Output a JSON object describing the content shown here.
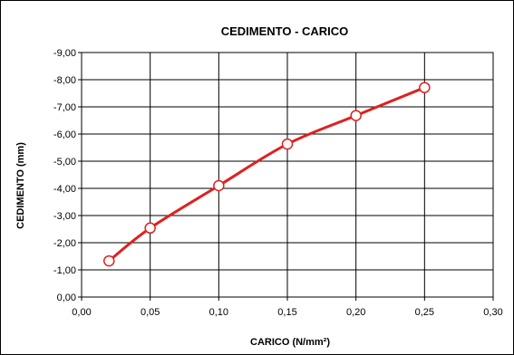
{
  "chart_data": {
    "type": "line",
    "title": "CEDIMENTO - CARICO",
    "xlabel": "CARICO  (N/mm²)",
    "ylabel": "CEDIMENTO (mm)",
    "xlim": [
      0,
      0.3
    ],
    "ylim": [
      0,
      -9
    ],
    "xticks": [
      "0,00",
      "0,05",
      "0,10",
      "0,15",
      "0,20",
      "0,25",
      "0,30"
    ],
    "yticks": [
      "0,00",
      "-1,00",
      "-2,00",
      "-3,00",
      "-4,00",
      "-5,00",
      "-6,00",
      "-7,00",
      "-8,00",
      "-9,00"
    ],
    "grid": true,
    "legend": "none",
    "series": [
      {
        "color": "#e02020",
        "marker": "circle",
        "x": [
          0.02,
          0.05,
          0.1,
          0.15,
          0.2,
          0.25
        ],
        "y": [
          -1.33,
          -2.54,
          -4.1,
          -5.63,
          -6.68,
          -7.71
        ]
      }
    ]
  }
}
